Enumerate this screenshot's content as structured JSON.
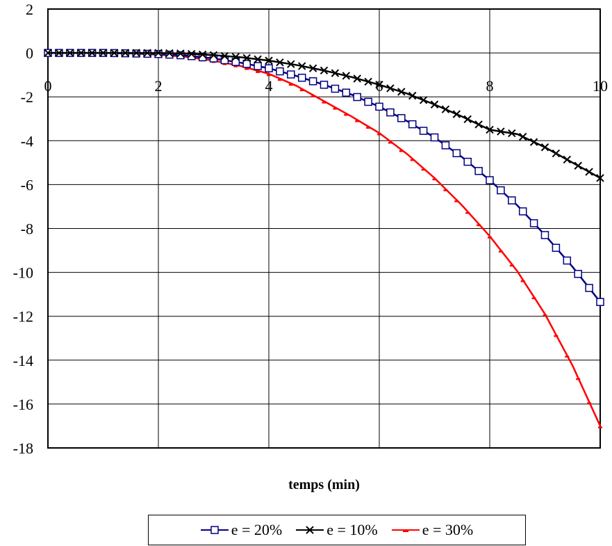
{
  "chart_data": {
    "type": "line",
    "title": "",
    "xlabel": "temps (min)",
    "ylabel": "",
    "xlim": [
      0,
      10
    ],
    "ylim": [
      -18,
      2
    ],
    "x_ticks": [
      "0",
      "2",
      "4",
      "6",
      "8",
      "10"
    ],
    "y_ticks": [
      "2",
      "0",
      "-2",
      "-4",
      "-6",
      "-8",
      "-10",
      "-12",
      "-14",
      "-16",
      "-18"
    ],
    "grid": true,
    "legend_position": "bottom",
    "x": [
      0,
      0.5,
      1,
      1.5,
      2,
      2.5,
      3,
      3.5,
      4,
      4.5,
      5,
      5.5,
      6,
      6.5,
      7,
      7.5,
      8,
      8.5,
      9,
      9.5,
      10
    ],
    "series": [
      {
        "name": "e  = 20%",
        "color": "#000080",
        "marker": "square",
        "values": [
          0,
          0,
          0,
          -0.02,
          -0.05,
          -0.12,
          -0.25,
          -0.45,
          -0.7,
          -1.05,
          -1.45,
          -1.9,
          -2.45,
          -3.1,
          -3.85,
          -4.75,
          -5.8,
          -6.95,
          -8.3,
          -9.75,
          -11.35
        ]
      },
      {
        "name": "e = 10%",
        "color": "#000000",
        "marker": "x",
        "values": [
          0,
          0,
          0,
          0,
          0,
          -0.03,
          -0.1,
          -0.2,
          -0.35,
          -0.55,
          -0.8,
          -1.1,
          -1.45,
          -1.85,
          -2.35,
          -2.9,
          -3.5,
          -3.7,
          -4.3,
          -5.0,
          -5.7
        ]
      },
      {
        "name": "e = 30%",
        "color": "#ff0000",
        "marker": "dash",
        "values": [
          0,
          0,
          0,
          -0.02,
          -0.08,
          -0.18,
          -0.35,
          -0.6,
          -0.95,
          -1.5,
          -2.2,
          -2.9,
          -3.65,
          -4.6,
          -5.7,
          -6.95,
          -8.35,
          -9.95,
          -11.9,
          -14.25,
          -17.0
        ]
      }
    ]
  }
}
